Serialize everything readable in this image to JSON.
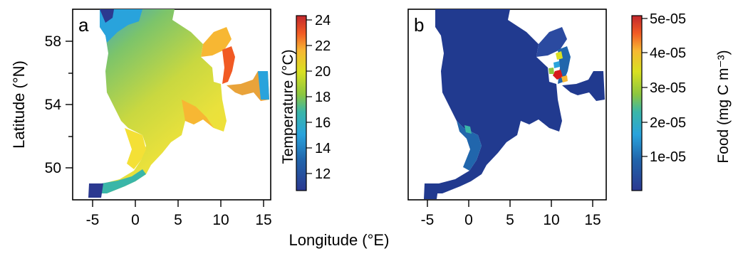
{
  "shared": {
    "ylabel": "Latitude (°N)",
    "xlabel": "Longitude (°E)",
    "xticks": [
      "-5",
      "0",
      "5",
      "10",
      "15"
    ],
    "yticks": [
      "58",
      "54",
      "50"
    ]
  },
  "panel_a": {
    "letter": "a",
    "colorbar_label": "Temperature (°C)",
    "colorbar_ticks": [
      "24",
      "22",
      "20",
      "18",
      "16",
      "14",
      "12"
    ]
  },
  "panel_b": {
    "letter": "b",
    "colorbar_label": "Food (mg C m⁻³)",
    "colorbar_ticks": [
      "5e-05",
      "4e-05",
      "3e-05",
      "2e-05",
      "1e-05"
    ]
  },
  "colors": {
    "land": "#ffffff",
    "cold": "#2b3990",
    "warm": "#d7191c",
    "map_b_base": "#213a8f"
  },
  "chart_data": [
    {
      "type": "heatmap",
      "panel": "a",
      "quantity": "Temperature (°C)",
      "xlim": [
        -7,
        17
      ],
      "ylim": [
        48,
        60
      ],
      "colorbar_range": [
        10.8,
        24.4
      ]
    },
    {
      "type": "heatmap",
      "panel": "b",
      "quantity": "Food (mg C m⁻³)",
      "xlim": [
        -7,
        17
      ],
      "ylim": [
        48,
        60
      ],
      "colorbar_range": [
        0,
        5e-05
      ]
    }
  ]
}
